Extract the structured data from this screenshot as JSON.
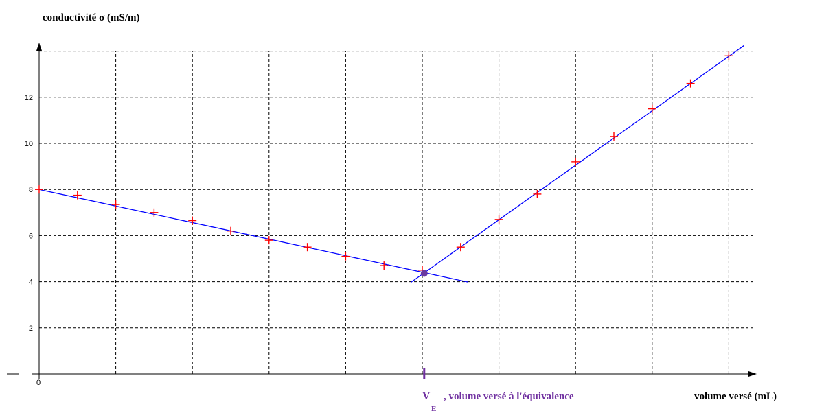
{
  "chart_data": {
    "type": "scatter",
    "ylabel": "conductivité σ (mS/m)",
    "xlabel": "volume versé (mL)",
    "x_axis_tick_label": "0",
    "y_ticks": [
      2,
      4,
      6,
      8,
      10,
      12
    ],
    "xlim": [
      0,
      18.5
    ],
    "ylim": [
      0,
      14.5
    ],
    "grid": true,
    "grid_style": "dashed",
    "marker_color": "#ff0000",
    "line_color": "#0000ff",
    "equivalence_color": "#7030a0",
    "series": [
      {
        "x": [
          0,
          1,
          2,
          3,
          4,
          5,
          6,
          7,
          8,
          9,
          10,
          11,
          12,
          13,
          14,
          15,
          16,
          17,
          18
        ],
        "y": [
          8.0,
          7.75,
          7.35,
          7.0,
          6.65,
          6.2,
          5.8,
          5.5,
          5.1,
          4.7,
          4.5,
          5.5,
          6.7,
          7.8,
          9.2,
          10.3,
          11.5,
          12.6,
          13.8
        ]
      }
    ],
    "fit_lines": [
      {
        "x": [
          0,
          11.2
        ],
        "y": [
          8.0,
          3.98
        ]
      },
      {
        "x": [
          9.7,
          18.4
        ],
        "y": [
          3.97,
          14.25
        ]
      }
    ],
    "equivalence": {
      "x": 10.05,
      "y": 4.36,
      "label_main": "V",
      "label_sub": "E",
      "label_rest": ", volume versé à l'équivalence"
    }
  }
}
